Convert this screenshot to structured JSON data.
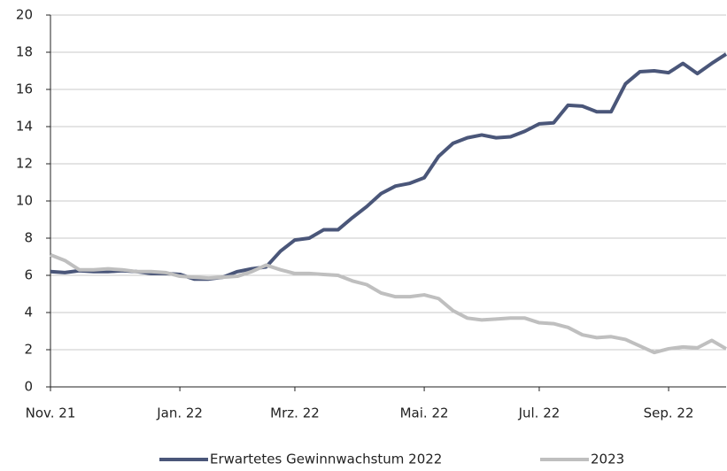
{
  "chart_data": {
    "type": "line",
    "categories": [
      "Nov. 21",
      null,
      null,
      null,
      null,
      null,
      null,
      null,
      null,
      "Jan. 22",
      null,
      null,
      null,
      null,
      null,
      null,
      null,
      "Mrz. 22",
      null,
      null,
      null,
      null,
      null,
      null,
      null,
      null,
      "Mai. 22",
      null,
      null,
      null,
      null,
      null,
      null,
      null,
      "Jul. 22",
      null,
      null,
      null,
      null,
      null,
      null,
      null,
      null,
      "Sep. 22",
      null,
      null,
      null,
      null
    ],
    "series": [
      {
        "name": "Erwartetes Gewinnwachstum 2022",
        "color": "#4a5679",
        "values": [
          6.2,
          6.15,
          6.25,
          6.2,
          6.2,
          6.25,
          6.2,
          6.1,
          6.1,
          6.05,
          5.8,
          5.8,
          5.9,
          6.2,
          6.35,
          6.45,
          7.3,
          7.9,
          8.0,
          8.45,
          8.45,
          9.1,
          9.7,
          10.4,
          10.8,
          10.95,
          11.25,
          12.4,
          13.1,
          13.4,
          13.55,
          13.4,
          13.45,
          13.75,
          14.15,
          14.2,
          15.15,
          15.1,
          14.8,
          14.8,
          16.3,
          16.95,
          17.0,
          16.9,
          17.4,
          16.85,
          17.4,
          17.9
        ]
      },
      {
        "name": "2023",
        "color": "#bfbfbf",
        "values": [
          7.1,
          6.8,
          6.3,
          6.3,
          6.35,
          6.3,
          6.2,
          6.2,
          6.15,
          5.95,
          5.9,
          5.85,
          5.9,
          5.95,
          6.2,
          6.55,
          6.3,
          6.1,
          6.1,
          6.05,
          6.0,
          5.7,
          5.5,
          5.05,
          4.85,
          4.85,
          4.95,
          4.75,
          4.1,
          3.7,
          3.6,
          3.65,
          3.7,
          3.7,
          3.45,
          3.4,
          3.2,
          2.8,
          2.65,
          2.7,
          2.55,
          2.2,
          1.85,
          2.05,
          2.15,
          2.1,
          2.5,
          2.05
        ]
      }
    ],
    "ylim": [
      0,
      20
    ],
    "yticks": [
      0,
      2,
      4,
      6,
      8,
      10,
      12,
      14,
      16,
      18,
      20
    ],
    "grid": true,
    "legend": "bottom"
  }
}
